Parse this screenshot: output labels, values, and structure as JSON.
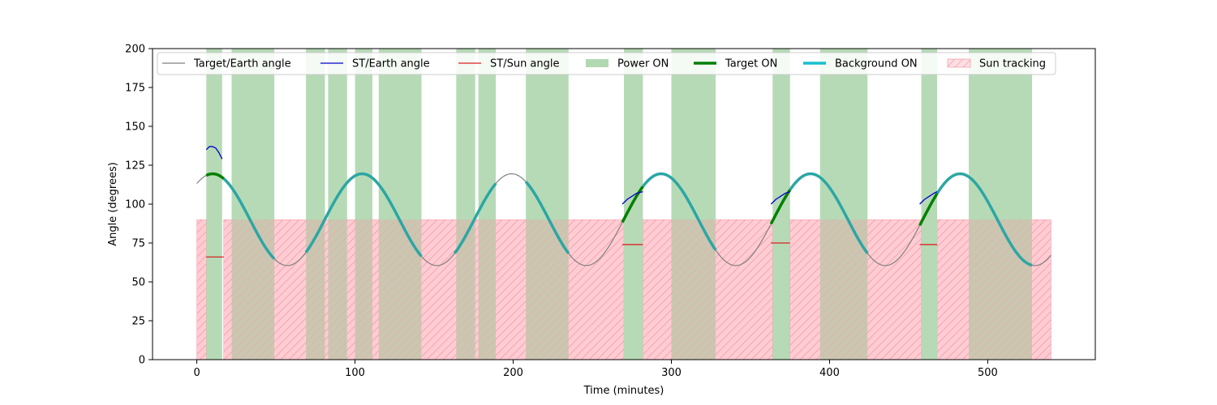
{
  "chart_data": {
    "type": "line",
    "title": "",
    "xlabel": "Time (minutes)",
    "ylabel": "Angle (degrees)",
    "xlim": [
      -28,
      568
    ],
    "ylim": [
      0,
      200
    ],
    "xticks": [
      0,
      100,
      200,
      300,
      400,
      500
    ],
    "yticks": [
      0,
      25,
      50,
      75,
      100,
      125,
      150,
      175,
      200
    ],
    "grid": false,
    "legend_placement": "top",
    "colors": {
      "target_earth": "#808080",
      "st_earth": "#0000cc",
      "st_sun": "#dd2222",
      "power_on": "#b2d8b2",
      "target_on": "#008000",
      "background_on": "#2ca6a4",
      "sun_tracking_fill": "#ffdfe3",
      "sun_tracking_hatch": "#f2a3ad"
    },
    "legend": [
      {
        "key": "target_earth",
        "label": "Target/Earth angle",
        "style": "thin-line"
      },
      {
        "key": "st_earth",
        "label": "ST/Earth angle",
        "style": "thin-line"
      },
      {
        "key": "st_sun",
        "label": "ST/Sun angle",
        "style": "thin-line"
      },
      {
        "key": "power_on",
        "label": "Power ON",
        "style": "patch"
      },
      {
        "key": "target_on",
        "label": "Target ON",
        "style": "thick-line"
      },
      {
        "key": "background_on",
        "label": "Background ON",
        "style": "thick-line"
      },
      {
        "key": "sun_tracking",
        "label": "Sun tracking",
        "style": "hatch-patch"
      }
    ],
    "target_earth_model": {
      "center": 90,
      "amplitude": 29.5,
      "period": 94.5,
      "phase_peak": 10,
      "t_start": 0,
      "t_end": 540
    },
    "power_on_intervals": [
      [
        6,
        16
      ],
      [
        22,
        49
      ],
      [
        69,
        81
      ],
      [
        83,
        95
      ],
      [
        100,
        111
      ],
      [
        115,
        142
      ],
      [
        164,
        176
      ],
      [
        178,
        189
      ],
      [
        208,
        235
      ],
      [
        270,
        282
      ],
      [
        300,
        328
      ],
      [
        364,
        375
      ],
      [
        394,
        424
      ],
      [
        458,
        468
      ],
      [
        488,
        528
      ]
    ],
    "sun_tracking": {
      "y_max": 90,
      "intervals": [
        [
          0,
          6
        ],
        [
          17,
          270
        ],
        [
          282,
          364
        ],
        [
          375,
          458
        ],
        [
          468,
          540
        ]
      ]
    },
    "target_on_intervals": [
      [
        6,
        17
      ],
      [
        269,
        282
      ],
      [
        363,
        375
      ],
      [
        457,
        468
      ]
    ],
    "background_on_intervals": [
      [
        17,
        49
      ],
      [
        69,
        142
      ],
      [
        163,
        189
      ],
      [
        208,
        235
      ],
      [
        282,
        328
      ],
      [
        375,
        424
      ],
      [
        468,
        528
      ]
    ],
    "st_earth_segments": [
      {
        "x": [
          6,
          8,
          10,
          12,
          14,
          16
        ],
        "y": [
          135,
          137,
          137,
          136,
          133,
          129
        ]
      },
      {
        "x": [
          269,
          272,
          275,
          278,
          282
        ],
        "y": [
          100,
          103,
          105,
          107,
          108
        ]
      },
      {
        "x": [
          363,
          366,
          369,
          372,
          375
        ],
        "y": [
          100,
          103,
          105,
          107,
          108
        ]
      },
      {
        "x": [
          457,
          460,
          463,
          466,
          468
        ],
        "y": [
          100,
          103,
          105,
          107,
          108
        ]
      }
    ],
    "st_sun_segments": [
      {
        "x": [
          6,
          17
        ],
        "y": [
          66,
          66
        ]
      },
      {
        "x": [
          269,
          282
        ],
        "y": [
          74,
          74
        ]
      },
      {
        "x": [
          363,
          375
        ],
        "y": [
          75,
          75
        ]
      },
      {
        "x": [
          457,
          468
        ],
        "y": [
          74,
          74
        ]
      }
    ]
  }
}
